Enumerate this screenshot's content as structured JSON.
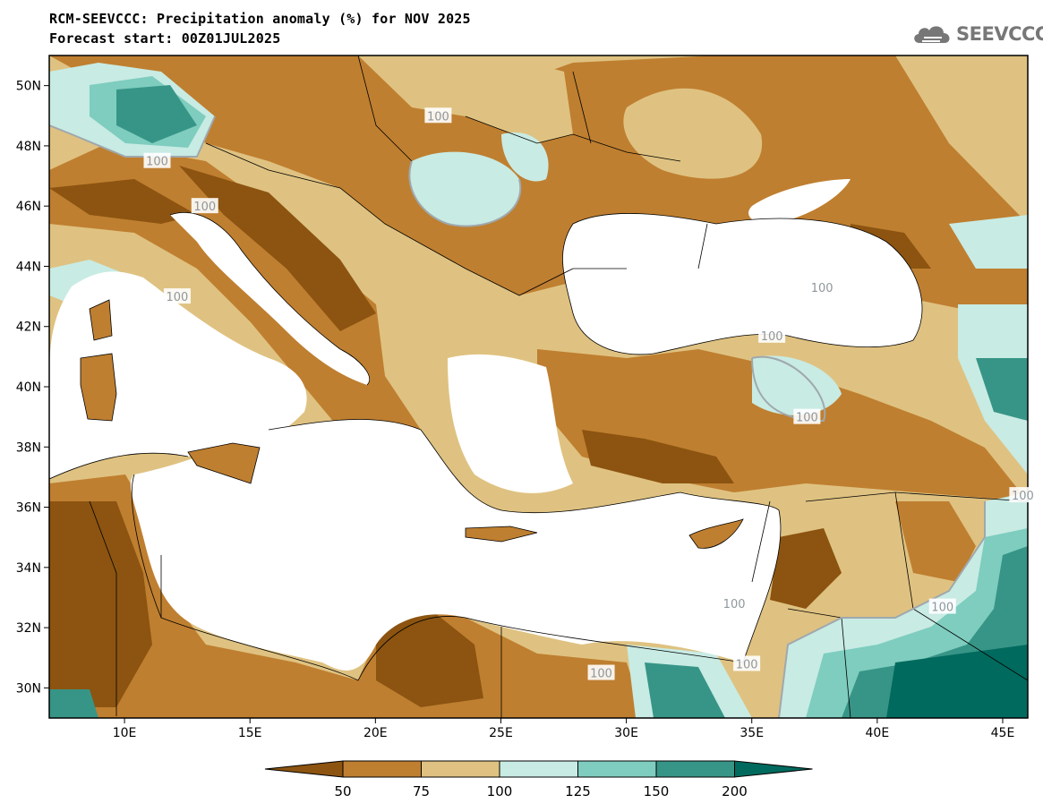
{
  "header": {
    "title": "RCM-SEEVCCC: Precipitation anomaly (%) for NOV 2025",
    "subtitle": "Forecast start: 00Z01JUL2025"
  },
  "logo": {
    "text": "SEEVCCC",
    "icon": "cloud-icon"
  },
  "map": {
    "lon_range": [
      7,
      46
    ],
    "lat_range": [
      29,
      51
    ],
    "lon_ticks": [
      "10E",
      "15E",
      "20E",
      "25E",
      "30E",
      "35E",
      "40E",
      "45E"
    ],
    "lat_ticks": [
      "30N",
      "32N",
      "34N",
      "36N",
      "38N",
      "40N",
      "42N",
      "44N",
      "46N",
      "48N",
      "50N"
    ],
    "contour_labels": [
      {
        "text": "100",
        "lon": 11.3,
        "lat": 47.5
      },
      {
        "text": "100",
        "lon": 13.2,
        "lat": 46.0
      },
      {
        "text": "100",
        "lon": 12.1,
        "lat": 43.0
      },
      {
        "text": "100",
        "lon": 22.5,
        "lat": 49.0
      },
      {
        "text": "100",
        "lon": 37.8,
        "lat": 43.3
      },
      {
        "text": "100",
        "lon": 35.8,
        "lat": 41.7
      },
      {
        "text": "100",
        "lon": 37.2,
        "lat": 39.0
      },
      {
        "text": "100",
        "lon": 45.8,
        "lat": 36.4
      },
      {
        "text": "100",
        "lon": 42.6,
        "lat": 32.7
      },
      {
        "text": "100",
        "lon": 29.0,
        "lat": 30.5
      },
      {
        "text": "100",
        "lon": 34.8,
        "lat": 30.8
      },
      {
        "text": "100",
        "lon": 34.3,
        "lat": 32.8
      }
    ]
  },
  "colorbar": {
    "labels": [
      "50",
      "75",
      "100",
      "125",
      "150",
      "200"
    ],
    "colors": [
      "#8c5410",
      "#bf7f30",
      "#dfc281",
      "#c8ebe4",
      "#7ecdbf",
      "#379587",
      "#016a5e"
    ]
  },
  "palette": {
    "sea": "#ffffff",
    "dry_strong": "#8c5410",
    "dry": "#bf7f30",
    "slightly_dry": "#dfc281",
    "slightly_wet": "#c8ebe4",
    "wet": "#7ecdbf",
    "very_wet": "#379587",
    "extreme_wet": "#016a5e"
  }
}
